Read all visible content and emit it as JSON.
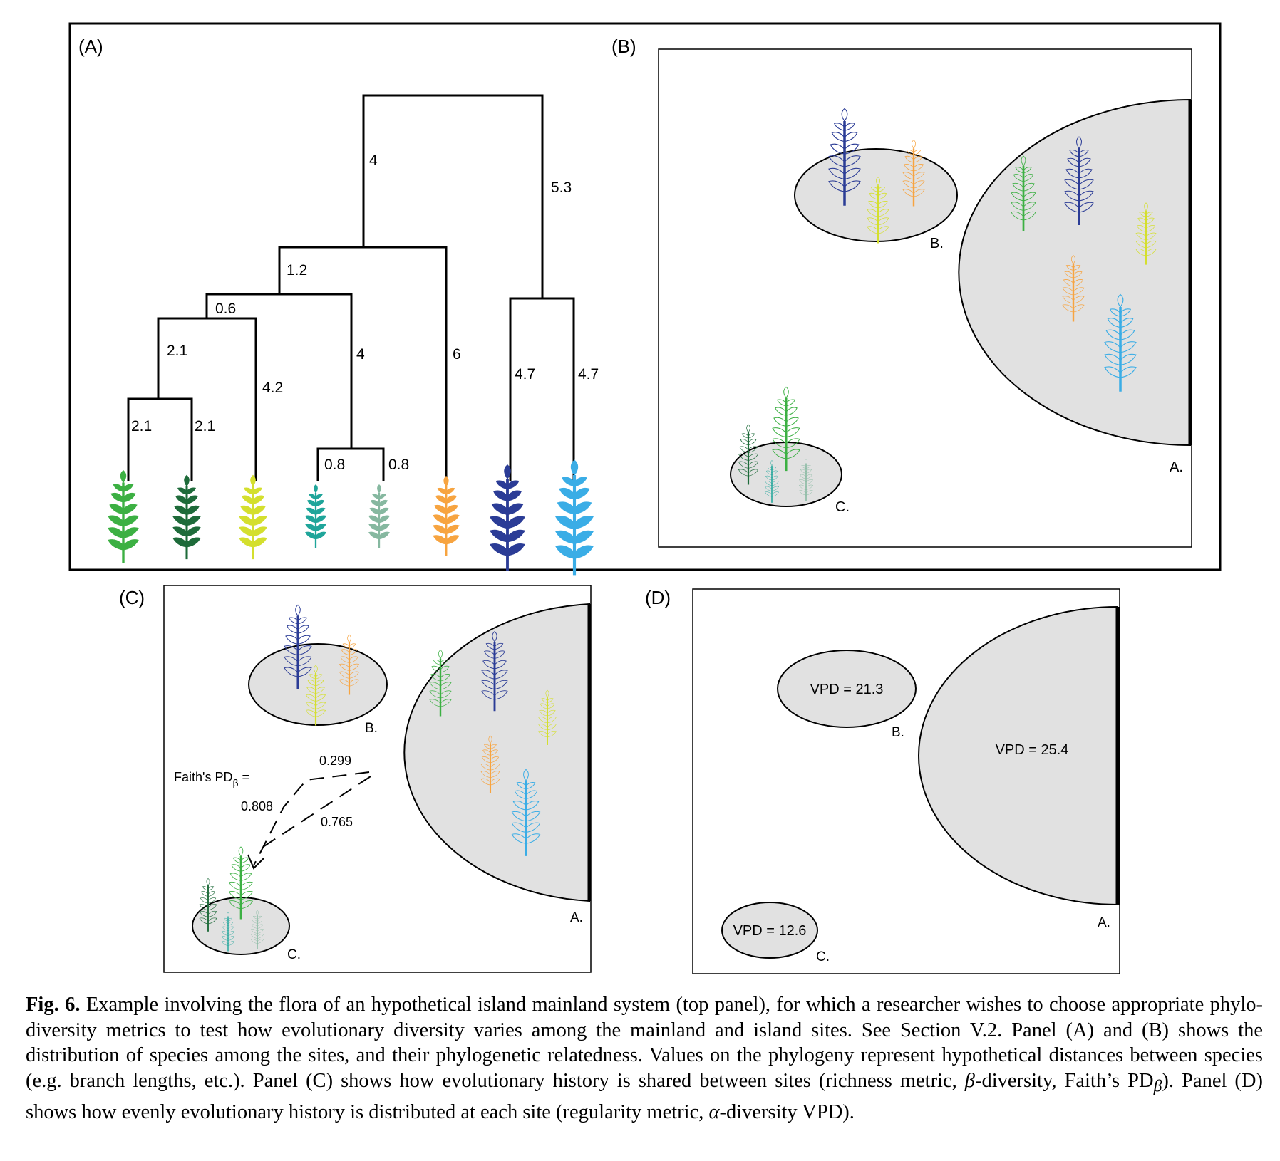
{
  "panels": {
    "A": {
      "label": "(A)",
      "branches": {
        "root_left": "4",
        "root_right": "5.3",
        "n12": "1.2",
        "n06": "0.6",
        "n21_up": "2.1",
        "n42": "4.2",
        "leaf1": "2.1",
        "leaf2": "2.1",
        "n4": "4",
        "leaf4": "0.8",
        "leaf5": "0.8",
        "leaf6": "6",
        "leaf7": "4.7",
        "leaf8": "4.7"
      }
    },
    "B": {
      "label": "(B)",
      "site_a": "A.",
      "site_b": "B.",
      "site_c": "C."
    },
    "C": {
      "label": "(C)",
      "site_a": "A.",
      "site_b": "B.",
      "site_c": "C.",
      "faith_label": "Faith's PD",
      "faith_sub": "β",
      "faith_eq": " =",
      "ab": "0.299",
      "bc": "0.808",
      "ac": "0.765"
    },
    "D": {
      "label": "(D)",
      "site_a": "A.",
      "site_b": "B.",
      "site_c": "C.",
      "vpd_a": "VPD = 25.4",
      "vpd_b": "VPD = 21.3",
      "vpd_c": "VPD = 12.6"
    }
  },
  "caption": {
    "fig": "Fig. 6.",
    "p1": " Example involving the flora of an hypothetical island mainland system (top panel), for which a researcher wishes to choose appropriate phylo-diversity metrics to test how evolutionary diversity varies among the mainland and island sites. See Section V.2. Panel (A) and (B) shows the distribution of species among the sites, and their phylogenetic relatedness. Values on the phylogeny represent hypothetical distances between species (e.g. branch lengths, etc.). Panel (C) shows how evolutionary history is shared between sites (richness metric, ",
    "beta": "β",
    "p2": "-diversity, Faith’s PD",
    "beta_sub": "β",
    "p3": "). Panel (D) shows how evenly evolutionary history is distributed at each site (regularity metric, ",
    "alpha": "α",
    "p4": "-diversity VPD)."
  },
  "colors": {
    "green": "#3cb043",
    "darkgreen": "#1e6b3a",
    "yellow": "#d4df2e",
    "teal": "#1fa59a",
    "sage": "#86b8a0",
    "orange": "#f7a440",
    "navy": "#2b3c96",
    "skyblue": "#3aade6",
    "site_fill": "#e1e1e1"
  }
}
